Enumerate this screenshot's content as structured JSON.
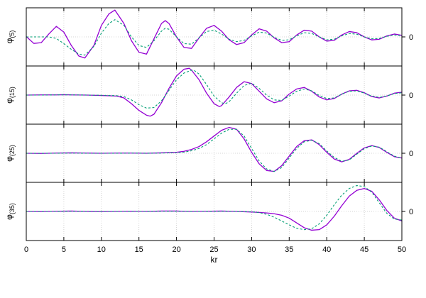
{
  "chart_data": [
    {
      "type": "line",
      "ylabel_main": "φ",
      "ylabel_sub": "(5)",
      "xlim": [
        0,
        50
      ],
      "y2_ticks": [
        "0"
      ],
      "grid": true,
      "series": [
        {
          "color": "#9400d3",
          "style": "solid",
          "x": [
            0,
            1,
            2,
            3,
            4,
            5,
            6,
            7,
            7.8,
            9,
            10,
            11,
            11.8,
            13,
            14,
            15,
            16,
            17,
            18,
            18.5,
            19,
            20,
            21,
            22,
            23,
            24,
            25,
            26,
            27,
            28,
            29,
            30,
            31,
            32,
            33,
            34,
            35,
            36,
            37,
            38,
            39,
            40,
            41,
            42,
            43,
            44,
            45,
            46,
            47,
            48,
            49,
            50
          ],
          "y": [
            0.02,
            -0.34,
            -0.3,
            0.15,
            0.55,
            0.25,
            -0.45,
            -1.0,
            -1.1,
            -0.45,
            0.6,
            1.2,
            1.4,
            0.7,
            -0.2,
            -0.8,
            -0.9,
            -0.1,
            0.7,
            0.85,
            0.7,
            0.0,
            -0.55,
            -0.6,
            -0.05,
            0.45,
            0.6,
            0.3,
            -0.15,
            -0.4,
            -0.3,
            0.1,
            0.42,
            0.3,
            -0.05,
            -0.3,
            -0.25,
            0.1,
            0.35,
            0.3,
            0.0,
            -0.22,
            -0.18,
            0.1,
            0.28,
            0.22,
            0.0,
            -0.16,
            -0.12,
            0.05,
            0.15,
            0.08
          ]
        },
        {
          "color": "#009e73",
          "style": "dashed",
          "x": [
            0,
            1,
            2,
            3,
            4,
            5,
            6,
            7,
            7.8,
            9,
            10,
            11,
            11.8,
            13,
            14,
            15,
            16,
            17,
            18,
            18.5,
            19,
            20,
            21,
            22,
            23,
            24,
            25,
            26,
            27,
            28,
            29,
            30,
            31,
            32,
            33,
            34,
            35,
            36,
            37,
            38,
            39,
            40,
            41,
            42,
            43,
            44,
            45,
            46,
            47,
            48,
            49,
            50
          ],
          "y": [
            0.0,
            0.0,
            0.0,
            0.0,
            -0.08,
            -0.35,
            -0.65,
            -0.9,
            -0.95,
            -0.5,
            0.2,
            0.7,
            0.9,
            0.6,
            0.0,
            -0.45,
            -0.55,
            -0.2,
            0.3,
            0.45,
            0.4,
            0.0,
            -0.35,
            -0.38,
            -0.05,
            0.28,
            0.35,
            0.15,
            -0.12,
            -0.25,
            -0.18,
            0.05,
            0.25,
            0.2,
            -0.02,
            -0.18,
            -0.15,
            0.05,
            0.22,
            0.18,
            0.0,
            -0.15,
            -0.12,
            0.05,
            0.18,
            0.14,
            0.0,
            -0.1,
            -0.08,
            0.03,
            0.1,
            0.06
          ]
        }
      ]
    },
    {
      "type": "line",
      "ylabel_main": "φ",
      "ylabel_sub": "(15)",
      "xlim": [
        0,
        50
      ],
      "y2_ticks": [
        "0"
      ],
      "grid": true,
      "series": [
        {
          "color": "#9400d3",
          "style": "solid",
          "x": [
            0,
            2,
            4,
            5,
            6,
            8,
            10,
            12,
            13,
            14,
            15,
            16,
            16.5,
            17,
            18,
            19,
            20,
            21,
            21.7,
            22,
            23,
            24,
            25,
            25.7,
            26,
            27,
            28,
            29,
            30,
            31,
            32,
            33,
            34,
            35,
            36,
            37,
            38,
            39,
            40,
            41,
            42,
            43,
            44,
            45,
            46,
            47,
            48,
            49,
            50
          ],
          "y": [
            0.0,
            0.01,
            0.01,
            0.02,
            0.01,
            0.0,
            -0.02,
            -0.05,
            -0.15,
            -0.45,
            -0.8,
            -1.05,
            -1.1,
            -1.0,
            -0.4,
            0.35,
            1.0,
            1.35,
            1.4,
            1.3,
            0.8,
            0.1,
            -0.45,
            -0.6,
            -0.55,
            -0.1,
            0.4,
            0.7,
            0.6,
            0.2,
            -0.2,
            -0.4,
            -0.3,
            0.05,
            0.32,
            0.4,
            0.2,
            -0.1,
            -0.25,
            -0.18,
            0.05,
            0.22,
            0.25,
            0.12,
            -0.08,
            -0.15,
            -0.05,
            0.1,
            0.15
          ]
        },
        {
          "color": "#009e73",
          "style": "dashed",
          "x": [
            0,
            2,
            4,
            6,
            8,
            10,
            12,
            13,
            14,
            15,
            16,
            17,
            18,
            19,
            20,
            21,
            22,
            22.3,
            23,
            24,
            25,
            26,
            26.5,
            27,
            28,
            29,
            30,
            31,
            32,
            33,
            34,
            35,
            36,
            37,
            38,
            39,
            40,
            41,
            42,
            43,
            44,
            45,
            46,
            47,
            48,
            49,
            50
          ],
          "y": [
            0.0,
            0.0,
            0.01,
            0.01,
            0.0,
            -0.01,
            -0.03,
            -0.08,
            -0.25,
            -0.5,
            -0.68,
            -0.65,
            -0.3,
            0.25,
            0.8,
            1.15,
            1.3,
            1.3,
            1.1,
            0.55,
            -0.05,
            -0.4,
            -0.45,
            -0.35,
            0.1,
            0.5,
            0.62,
            0.35,
            0.0,
            -0.25,
            -0.28,
            -0.05,
            0.2,
            0.32,
            0.22,
            -0.02,
            -0.18,
            -0.15,
            0.05,
            0.2,
            0.22,
            0.1,
            -0.05,
            -0.12,
            -0.05,
            0.08,
            0.12
          ]
        }
      ]
    },
    {
      "type": "line",
      "ylabel_main": "φ",
      "ylabel_sub": "(25)",
      "xlim": [
        0,
        50
      ],
      "y2_ticks": [
        "0"
      ],
      "grid": true,
      "series": [
        {
          "color": "#9400d3",
          "style": "solid",
          "x": [
            0,
            2,
            4,
            6,
            8,
            10,
            12,
            14,
            16,
            18,
            20,
            21,
            22,
            23,
            24,
            25,
            26,
            27,
            28,
            29,
            30,
            31,
            32,
            33,
            34,
            35,
            36,
            37,
            38,
            39,
            40,
            41,
            42,
            43,
            44,
            45,
            46,
            47,
            48,
            49,
            50
          ],
          "y": [
            0.0,
            -0.01,
            0.01,
            0.02,
            0.01,
            0.0,
            0.01,
            0.01,
            0.0,
            0.02,
            0.05,
            0.1,
            0.2,
            0.35,
            0.6,
            0.9,
            1.2,
            1.35,
            1.25,
            0.75,
            0.05,
            -0.55,
            -0.9,
            -0.95,
            -0.65,
            -0.15,
            0.35,
            0.65,
            0.7,
            0.45,
            0.05,
            -0.3,
            -0.45,
            -0.32,
            0.0,
            0.28,
            0.4,
            0.3,
            0.05,
            -0.18,
            -0.25
          ]
        },
        {
          "color": "#009e73",
          "style": "dashed",
          "x": [
            0,
            2,
            4,
            6,
            8,
            10,
            12,
            14,
            16,
            18,
            20,
            21,
            22,
            23,
            24,
            25,
            26,
            27,
            28,
            29,
            30,
            31,
            32,
            33,
            34,
            35,
            36,
            37,
            38,
            39,
            40,
            41,
            42,
            43,
            44,
            45,
            46,
            47,
            48,
            49,
            50
          ],
          "y": [
            0.0,
            0.0,
            0.0,
            0.01,
            0.0,
            0.0,
            0.0,
            0.01,
            0.0,
            0.01,
            0.03,
            0.06,
            0.13,
            0.25,
            0.45,
            0.75,
            1.05,
            1.25,
            1.25,
            0.9,
            0.25,
            -0.4,
            -0.82,
            -0.95,
            -0.75,
            -0.25,
            0.25,
            0.6,
            0.68,
            0.5,
            0.12,
            -0.22,
            -0.42,
            -0.35,
            -0.05,
            0.24,
            0.38,
            0.32,
            0.08,
            -0.15,
            -0.25
          ]
        }
      ]
    },
    {
      "type": "line",
      "ylabel_main": "φ",
      "ylabel_sub": "(35)",
      "xlim": [
        0,
        50
      ],
      "y2_ticks": [
        "0"
      ],
      "grid": true,
      "xlabel": "kr",
      "xticks": [
        0,
        5,
        10,
        15,
        20,
        25,
        30,
        35,
        40,
        45,
        50
      ],
      "series": [
        {
          "color": "#9400d3",
          "style": "solid",
          "x": [
            0,
            2,
            4,
            6,
            8,
            10,
            12,
            14,
            16,
            18,
            20,
            22,
            24,
            26,
            28,
            30,
            31,
            32,
            33,
            34,
            35,
            36,
            37,
            38,
            39,
            40,
            41,
            42,
            43,
            44,
            45,
            46,
            47,
            48,
            49,
            50
          ],
          "y": [
            0.0,
            -0.01,
            0.01,
            0.02,
            0.0,
            -0.01,
            0.0,
            0.01,
            0.0,
            0.02,
            0.02,
            0.0,
            0.01,
            0.02,
            0.0,
            -0.03,
            -0.05,
            -0.08,
            -0.12,
            -0.2,
            -0.35,
            -0.6,
            -0.85,
            -0.98,
            -0.95,
            -0.7,
            -0.25,
            0.3,
            0.8,
            1.1,
            1.2,
            1.05,
            0.6,
            0.05,
            -0.35,
            -0.5
          ]
        },
        {
          "color": "#009e73",
          "style": "dashed",
          "x": [
            0,
            2,
            4,
            6,
            8,
            10,
            12,
            14,
            16,
            18,
            20,
            22,
            24,
            26,
            28,
            30,
            31,
            32,
            33,
            34,
            35,
            36,
            37,
            38,
            39,
            40,
            41,
            42,
            43,
            44,
            45,
            46,
            47,
            48,
            49,
            50
          ],
          "y": [
            0.0,
            0.0,
            0.0,
            0.01,
            0.0,
            0.0,
            0.0,
            0.0,
            0.0,
            0.01,
            0.01,
            0.0,
            0.0,
            0.01,
            0.0,
            -0.02,
            -0.06,
            -0.15,
            -0.3,
            -0.5,
            -0.7,
            -0.88,
            -0.95,
            -0.9,
            -0.65,
            -0.2,
            0.35,
            0.85,
            1.2,
            1.35,
            1.3,
            1.0,
            0.45,
            -0.1,
            -0.4,
            -0.45
          ]
        }
      ]
    }
  ]
}
